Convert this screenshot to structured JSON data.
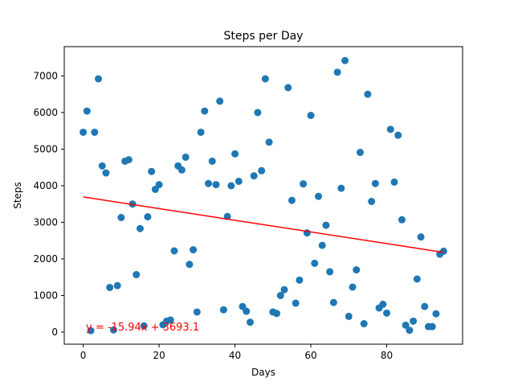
{
  "chart_data": {
    "type": "scatter",
    "title": "Steps per Day",
    "xlabel": "Days",
    "ylabel": "Steps",
    "xlim": [
      -5,
      100
    ],
    "ylim": [
      -330,
      7800
    ],
    "xticks": [
      0,
      20,
      40,
      60,
      80
    ],
    "yticks": [
      0,
      1000,
      2000,
      3000,
      4000,
      5000,
      6000,
      7000
    ],
    "grid": false,
    "point_color": "#1f77b4",
    "line_color": "#ff0000",
    "annotation": "y = -15.94x + 3693.1",
    "trendline": {
      "slope": -15.94,
      "intercept": 3693.1,
      "x_start": 0,
      "x_end": 95
    },
    "points": [
      [
        0,
        5460
      ],
      [
        1,
        6040
      ],
      [
        2,
        40
      ],
      [
        3,
        5460
      ],
      [
        4,
        6920
      ],
      [
        5,
        4540
      ],
      [
        6,
        4350
      ],
      [
        7,
        1220
      ],
      [
        8,
        60
      ],
      [
        9,
        1270
      ],
      [
        10,
        3130
      ],
      [
        11,
        4670
      ],
      [
        12,
        4710
      ],
      [
        13,
        3500
      ],
      [
        14,
        1570
      ],
      [
        15,
        2830
      ],
      [
        16,
        170
      ],
      [
        17,
        3150
      ],
      [
        18,
        4390
      ],
      [
        19,
        3900
      ],
      [
        20,
        4030
      ],
      [
        21,
        200
      ],
      [
        22,
        300
      ],
      [
        23,
        330
      ],
      [
        24,
        2220
      ],
      [
        25,
        4540
      ],
      [
        26,
        4430
      ],
      [
        27,
        4780
      ],
      [
        28,
        1850
      ],
      [
        29,
        2250
      ],
      [
        30,
        550
      ],
      [
        31,
        5460
      ],
      [
        32,
        6040
      ],
      [
        33,
        4060
      ],
      [
        34,
        4670
      ],
      [
        35,
        4030
      ],
      [
        36,
        6310
      ],
      [
        37,
        610
      ],
      [
        38,
        3160
      ],
      [
        39,
        4000
      ],
      [
        40,
        4870
      ],
      [
        41,
        4120
      ],
      [
        42,
        700
      ],
      [
        43,
        570
      ],
      [
        44,
        270
      ],
      [
        45,
        4270
      ],
      [
        46,
        6000
      ],
      [
        47,
        4410
      ],
      [
        48,
        6920
      ],
      [
        49,
        5190
      ],
      [
        50,
        550
      ],
      [
        51,
        510
      ],
      [
        52,
        1000
      ],
      [
        53,
        1160
      ],
      [
        54,
        6680
      ],
      [
        55,
        3600
      ],
      [
        56,
        790
      ],
      [
        57,
        1420
      ],
      [
        58,
        4050
      ],
      [
        59,
        2710
      ],
      [
        60,
        5920
      ],
      [
        61,
        1880
      ],
      [
        62,
        3710
      ],
      [
        63,
        2370
      ],
      [
        64,
        2920
      ],
      [
        65,
        1650
      ],
      [
        66,
        810
      ],
      [
        67,
        7100
      ],
      [
        68,
        3930
      ],
      [
        69,
        7420
      ],
      [
        70,
        430
      ],
      [
        71,
        1230
      ],
      [
        72,
        1700
      ],
      [
        73,
        4910
      ],
      [
        74,
        230
      ],
      [
        75,
        6500
      ],
      [
        76,
        3570
      ],
      [
        77,
        4060
      ],
      [
        78,
        660
      ],
      [
        79,
        760
      ],
      [
        80,
        520
      ],
      [
        81,
        5540
      ],
      [
        82,
        4100
      ],
      [
        83,
        5380
      ],
      [
        84,
        3070
      ],
      [
        85,
        190
      ],
      [
        86,
        50
      ],
      [
        87,
        300
      ],
      [
        88,
        1450
      ],
      [
        89,
        2600
      ],
      [
        90,
        700
      ],
      [
        91,
        150
      ],
      [
        92,
        150
      ],
      [
        93,
        500
      ],
      [
        94,
        2130
      ],
      [
        95,
        2210
      ]
    ]
  }
}
